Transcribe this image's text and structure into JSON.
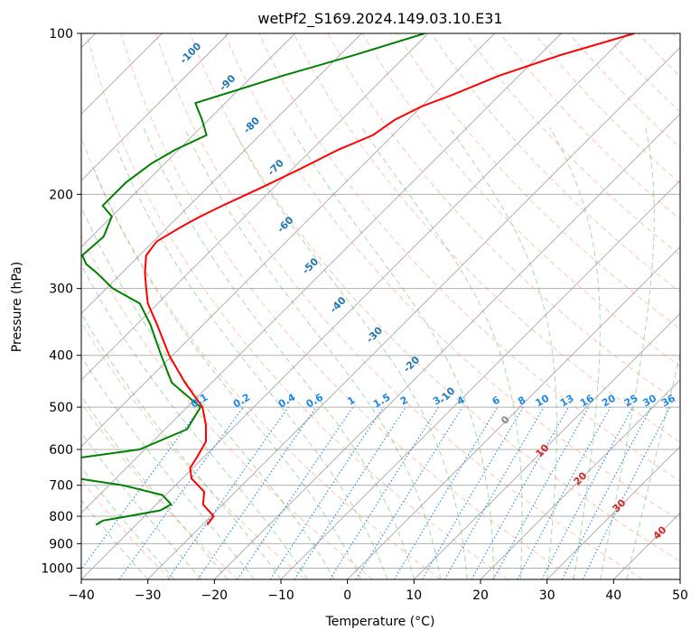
{
  "chart_data": {
    "type": "line",
    "title": "wetPf2_S169.2024.149.03.10.E31",
    "xlabel": "Temperature (°C)",
    "ylabel": "Pressure (hPa)",
    "xlim": [
      -40,
      50
    ],
    "ylim": [
      1050,
      100
    ],
    "y_scale": "log",
    "skew_t": true,
    "grid": true,
    "x_ticks": [
      -40,
      -30,
      -20,
      -10,
      0,
      10,
      20,
      30,
      40,
      50
    ],
    "y_ticks": [
      100,
      200,
      300,
      400,
      500,
      600,
      700,
      800,
      900,
      1000
    ],
    "dry_adiabat_labels": [
      -100,
      -90,
      -80,
      -70,
      -60,
      -50,
      -40,
      -30,
      -20,
      -10
    ],
    "mixing_ratio_labels": [
      "0.1",
      "0.2",
      "0.4",
      "0.6",
      "1",
      "1.5",
      "2",
      "3",
      "4",
      "6",
      "8",
      "10",
      "13",
      "16",
      "20",
      "25",
      "30",
      "36"
    ],
    "moist_adiabat_labels": [
      0,
      10,
      20,
      30,
      40
    ],
    "colors": {
      "temperature": "#ff0000",
      "dewpoint": "#008000",
      "dry_adiabat": "#ff7f50",
      "moist_adiabat": "#2ca02c",
      "mixing_ratio": "#1e88e5",
      "isotherm": "#888888",
      "dry_label": "#1f77b4",
      "moist_label": "#d62728"
    },
    "series": [
      {
        "key": "temperature",
        "p": [
          100,
          110,
          120,
          130,
          137,
          145,
          155,
          165,
          180,
          195,
          210,
          220,
          230,
          245,
          260,
          280,
          300,
          320,
          350,
          400,
          450,
          500,
          540,
          580,
          620,
          650,
          680,
          720,
          760,
          800,
          820,
          830
        ],
        "t": [
          -39,
          -47,
          -53,
          -57,
          -60,
          -62,
          -63,
          -66,
          -69,
          -72,
          -75,
          -76.7,
          -78,
          -79.5,
          -79,
          -76.6,
          -74,
          -71.5,
          -67,
          -60.5,
          -54,
          -47.7,
          -44.5,
          -42,
          -41,
          -40.4,
          -38.6,
          -34.7,
          -33,
          -29.6,
          -29.4,
          -29.3
        ]
      },
      {
        "key": "dewpoint",
        "p": [
          100,
          110,
          120,
          135,
          145,
          155,
          165,
          175,
          190,
          200,
          210,
          220,
          240,
          260,
          270,
          280,
          300,
          320,
          350,
          400,
          450,
          500,
          550,
          600,
          620,
          640,
          650,
          670,
          700,
          730,
          760,
          780,
          800,
          815,
          830
        ],
        "t": [
          -70.5,
          -78,
          -85.5,
          -94.5,
          -91,
          -88,
          -90.5,
          -92,
          -93,
          -93,
          -93,
          -90,
          -88.2,
          -88.6,
          -86.7,
          -83.9,
          -79,
          -72.7,
          -68,
          -61.7,
          -56,
          -48,
          -46.7,
          -50.8,
          -58,
          -73,
          -81,
          -59.6,
          -47.9,
          -40.5,
          -37.8,
          -38.5,
          -42.5,
          -45.6,
          -46
        ]
      }
    ]
  }
}
